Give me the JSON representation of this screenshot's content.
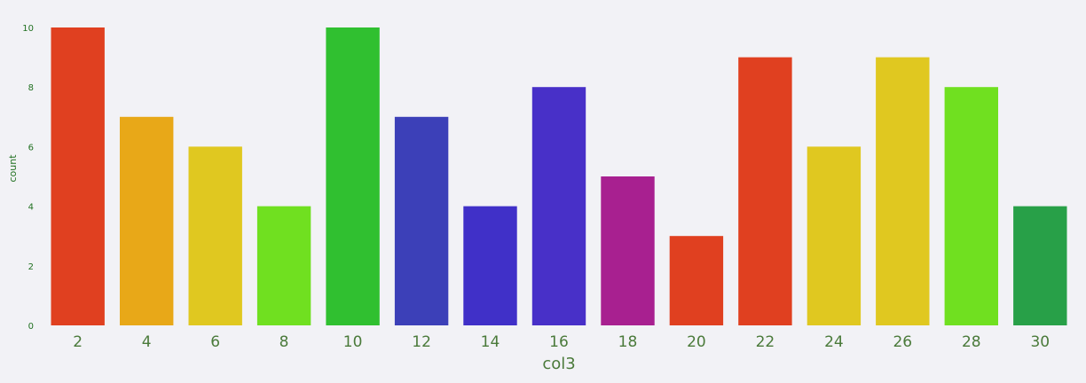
{
  "chart_data": {
    "type": "bar",
    "xlabel": "col3",
    "ylabel": "count",
    "ylim": [
      0,
      10
    ],
    "yticks": [
      "0",
      "2",
      "4",
      "6",
      "8",
      "10"
    ],
    "categories": [
      "2",
      "4",
      "6",
      "8",
      "10",
      "12",
      "14",
      "16",
      "18",
      "20",
      "22",
      "24",
      "26",
      "28",
      "30"
    ],
    "values": [
      10,
      7,
      6,
      4,
      10,
      7,
      4,
      8,
      5,
      3,
      9,
      6,
      9,
      8,
      4
    ],
    "colors": [
      "#e04020",
      "#e8a818",
      "#e0c820",
      "#70e020",
      "#30c030",
      "#3c40b8",
      "#4030c8",
      "#4830c8",
      "#a82090",
      "#e04020",
      "#e04020",
      "#e0c820",
      "#e0c820",
      "#70e020",
      "#28a048"
    ],
    "grid": false,
    "legend": "none",
    "tick_color": "#207020",
    "x_tick_color": "#4a7a3a",
    "background": "#f2f2f6"
  }
}
